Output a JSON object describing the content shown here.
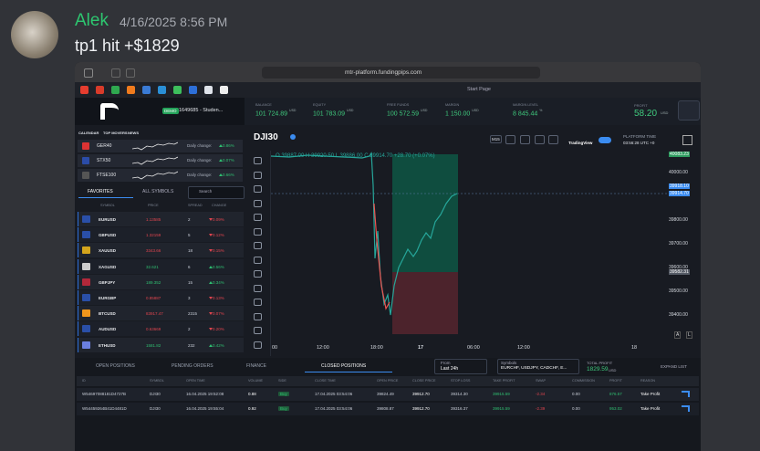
{
  "message": {
    "author": "Alek",
    "timestamp": "4/16/2025 8:56 PM",
    "text": "tp1 hit +$1829"
  },
  "browser": {
    "url": "mtr-platform.fundingpips.com",
    "tab": "Start Page"
  },
  "platform": {
    "account": {
      "badge": "DEMO",
      "name": "1649685 - Studen..."
    },
    "stats": [
      {
        "label": "BALANCE",
        "value": "101 724.89",
        "unit": "USD"
      },
      {
        "label": "EQUITY",
        "value": "101 783.09",
        "unit": "USD"
      },
      {
        "label": "FREE FUNDS",
        "value": "100 572.59",
        "unit": "USD"
      },
      {
        "label": "MARGIN",
        "value": "1 150.00",
        "unit": "USD"
      },
      {
        "label": "MARGIN LEVEL",
        "value": "8 845.44",
        "unit": "%"
      }
    ],
    "profit": {
      "label": "PROFIT",
      "value": "58.20",
      "unit": "USD"
    },
    "side_tabs": [
      "CALENDAR",
      "TOP MOVERS",
      "NEWS"
    ],
    "movers": [
      {
        "symbol": "GER40",
        "label": "Daily change:",
        "change": "0.86%"
      },
      {
        "symbol": "STX50",
        "label": "Daily change:",
        "change": "0.07%"
      },
      {
        "symbol": "FTSE100",
        "label": "Daily change:",
        "change": "0.66%"
      }
    ],
    "watch_tabs": [
      "FAVORITES",
      "ALL SYMBOLS"
    ],
    "search": "Search",
    "watch_columns": [
      "SYMBOL",
      "PRICE",
      "SPREAD",
      "CHANGE"
    ],
    "watchlist": [
      {
        "symbol": "EURUSD",
        "price": "1.13585",
        "spread": "2",
        "change": "0.09%",
        "up": false
      },
      {
        "symbol": "GBPUSD",
        "price": "1.32159",
        "spread": "5",
        "change": "0.12%",
        "up": false
      },
      {
        "symbol": "XAUUSD",
        "price": "3343.66",
        "spread": "18",
        "change": "0.15%",
        "up": false
      },
      {
        "symbol": "XAGUSD",
        "price": "32.621",
        "spread": "6",
        "change": "0.56%",
        "up": true
      },
      {
        "symbol": "GBPJPY",
        "price": "189.352",
        "spread": "15",
        "change": "0.34%",
        "up": true
      },
      {
        "symbol": "EURGBP",
        "price": "0.85887",
        "spread": "3",
        "change": "0.13%",
        "up": false
      },
      {
        "symbol": "BTCUSD",
        "price": "83917.47",
        "spread": "2315",
        "change": "0.07%",
        "up": false
      },
      {
        "symbol": "AUDUSD",
        "price": "0.63669",
        "spread": "2",
        "change": "0.20%",
        "up": false
      },
      {
        "symbol": "ETHUSD",
        "price": "1581.82",
        "spread": "232",
        "change": "0.42%",
        "up": true
      }
    ],
    "chart": {
      "symbol": "DJI30",
      "ohlc": "O 39887.00  H 39920.50  L 39886.00  C 39914.70  +28.70 (+0.07%)",
      "timeframe": "M15",
      "provider": "TradingView",
      "time_label": "PLATFORM TIME",
      "time": "03:56:28 UTC +0",
      "price_labels": [
        "40083.23",
        "40000.00",
        "39918.10",
        "39914.70",
        "39800.00",
        "39700.00",
        "39600.00",
        "39582.31",
        "39500.00",
        "39400.00"
      ],
      "time_labels": [
        "00",
        "12:00",
        "18:00",
        "17",
        "06:00",
        "12:00",
        "18"
      ],
      "scale_buttons": [
        "A",
        "L"
      ]
    },
    "bottom_tabs": [
      "OPEN POSITIONS",
      "PENDING ORDERS",
      "FINANCE",
      "CLOSED POSITIONS"
    ],
    "active_tab": 3,
    "filters": {
      "from_label": "From",
      "from": "Last 24h",
      "symbols_label": "Symbols",
      "symbols": "EURCHF, USDJPY, CADCHF, E...",
      "total_label": "TOTAL PROFIT",
      "total": "1829.59",
      "total_unit": "USD",
      "expand": "EXPAND LIST"
    },
    "columns": [
      "ID",
      "SYMBOL",
      "OPEN TIME",
      "VOLUME",
      "SIDE",
      "CLOSE TIME",
      "OPEN PRICE",
      "CLOSE PRICE",
      "STOP LOSS",
      "TAKE PROFIT",
      "SWAP",
      "COMMISSION",
      "PROFIT",
      "REASON"
    ],
    "rows": [
      [
        "W54697088181D4727B",
        "DJI30",
        "16.04.2025 19:52:08",
        "0.88",
        "Buy",
        "17.04.2025 03:54:06",
        "39824.49",
        "39912.70",
        "39314.30",
        "39915.59",
        "-2.34",
        "0.00",
        "876.57",
        "Take Profit"
      ],
      [
        "W54459264B41D4481D",
        "DJI30",
        "16.04.2025 19:55:04",
        "0.92",
        "Buy",
        "17.04.2025 03:54:06",
        "39808.87",
        "39912.70",
        "39316.37",
        "39915.59",
        "-2.39",
        "0.00",
        "953.02",
        "Take Profit"
      ]
    ]
  }
}
